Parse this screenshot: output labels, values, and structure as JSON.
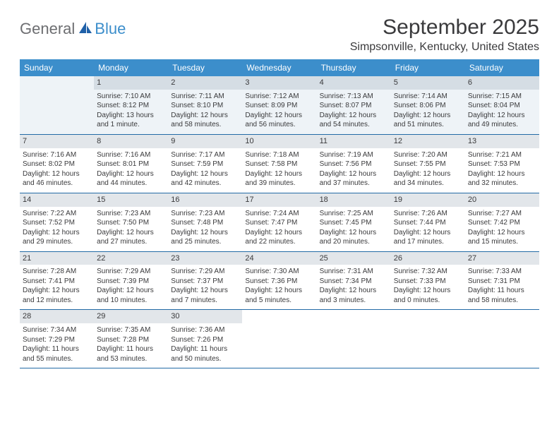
{
  "logo": {
    "general": "General",
    "blue": "Blue",
    "shape_color": "#1f60a8"
  },
  "header": {
    "title": "September 2025",
    "location": "Simpsonville, Kentucky, United States"
  },
  "theme": {
    "header_bg": "#3c8ecb",
    "header_text": "#ffffff",
    "row_border": "#236ba6",
    "daynum_bg": "#e2e6ea",
    "alt_row_bg": "#eef3f7",
    "text_color": "#3a3a3c",
    "title_fontsize": 30,
    "location_fontsize": 16,
    "dayheader_fontsize": 12,
    "cell_fontsize": 10
  },
  "day_headers": [
    "Sunday",
    "Monday",
    "Tuesday",
    "Wednesday",
    "Thursday",
    "Friday",
    "Saturday"
  ],
  "weeks": [
    [
      null,
      {
        "n": "1",
        "sr": "Sunrise: 7:10 AM",
        "ss": "Sunset: 8:12 PM",
        "dl1": "Daylight: 13 hours",
        "dl2": "and 1 minute."
      },
      {
        "n": "2",
        "sr": "Sunrise: 7:11 AM",
        "ss": "Sunset: 8:10 PM",
        "dl1": "Daylight: 12 hours",
        "dl2": "and 58 minutes."
      },
      {
        "n": "3",
        "sr": "Sunrise: 7:12 AM",
        "ss": "Sunset: 8:09 PM",
        "dl1": "Daylight: 12 hours",
        "dl2": "and 56 minutes."
      },
      {
        "n": "4",
        "sr": "Sunrise: 7:13 AM",
        "ss": "Sunset: 8:07 PM",
        "dl1": "Daylight: 12 hours",
        "dl2": "and 54 minutes."
      },
      {
        "n": "5",
        "sr": "Sunrise: 7:14 AM",
        "ss": "Sunset: 8:06 PM",
        "dl1": "Daylight: 12 hours",
        "dl2": "and 51 minutes."
      },
      {
        "n": "6",
        "sr": "Sunrise: 7:15 AM",
        "ss": "Sunset: 8:04 PM",
        "dl1": "Daylight: 12 hours",
        "dl2": "and 49 minutes."
      }
    ],
    [
      {
        "n": "7",
        "sr": "Sunrise: 7:16 AM",
        "ss": "Sunset: 8:02 PM",
        "dl1": "Daylight: 12 hours",
        "dl2": "and 46 minutes."
      },
      {
        "n": "8",
        "sr": "Sunrise: 7:16 AM",
        "ss": "Sunset: 8:01 PM",
        "dl1": "Daylight: 12 hours",
        "dl2": "and 44 minutes."
      },
      {
        "n": "9",
        "sr": "Sunrise: 7:17 AM",
        "ss": "Sunset: 7:59 PM",
        "dl1": "Daylight: 12 hours",
        "dl2": "and 42 minutes."
      },
      {
        "n": "10",
        "sr": "Sunrise: 7:18 AM",
        "ss": "Sunset: 7:58 PM",
        "dl1": "Daylight: 12 hours",
        "dl2": "and 39 minutes."
      },
      {
        "n": "11",
        "sr": "Sunrise: 7:19 AM",
        "ss": "Sunset: 7:56 PM",
        "dl1": "Daylight: 12 hours",
        "dl2": "and 37 minutes."
      },
      {
        "n": "12",
        "sr": "Sunrise: 7:20 AM",
        "ss": "Sunset: 7:55 PM",
        "dl1": "Daylight: 12 hours",
        "dl2": "and 34 minutes."
      },
      {
        "n": "13",
        "sr": "Sunrise: 7:21 AM",
        "ss": "Sunset: 7:53 PM",
        "dl1": "Daylight: 12 hours",
        "dl2": "and 32 minutes."
      }
    ],
    [
      {
        "n": "14",
        "sr": "Sunrise: 7:22 AM",
        "ss": "Sunset: 7:52 PM",
        "dl1": "Daylight: 12 hours",
        "dl2": "and 29 minutes."
      },
      {
        "n": "15",
        "sr": "Sunrise: 7:23 AM",
        "ss": "Sunset: 7:50 PM",
        "dl1": "Daylight: 12 hours",
        "dl2": "and 27 minutes."
      },
      {
        "n": "16",
        "sr": "Sunrise: 7:23 AM",
        "ss": "Sunset: 7:48 PM",
        "dl1": "Daylight: 12 hours",
        "dl2": "and 25 minutes."
      },
      {
        "n": "17",
        "sr": "Sunrise: 7:24 AM",
        "ss": "Sunset: 7:47 PM",
        "dl1": "Daylight: 12 hours",
        "dl2": "and 22 minutes."
      },
      {
        "n": "18",
        "sr": "Sunrise: 7:25 AM",
        "ss": "Sunset: 7:45 PM",
        "dl1": "Daylight: 12 hours",
        "dl2": "and 20 minutes."
      },
      {
        "n": "19",
        "sr": "Sunrise: 7:26 AM",
        "ss": "Sunset: 7:44 PM",
        "dl1": "Daylight: 12 hours",
        "dl2": "and 17 minutes."
      },
      {
        "n": "20",
        "sr": "Sunrise: 7:27 AM",
        "ss": "Sunset: 7:42 PM",
        "dl1": "Daylight: 12 hours",
        "dl2": "and 15 minutes."
      }
    ],
    [
      {
        "n": "21",
        "sr": "Sunrise: 7:28 AM",
        "ss": "Sunset: 7:41 PM",
        "dl1": "Daylight: 12 hours",
        "dl2": "and 12 minutes."
      },
      {
        "n": "22",
        "sr": "Sunrise: 7:29 AM",
        "ss": "Sunset: 7:39 PM",
        "dl1": "Daylight: 12 hours",
        "dl2": "and 10 minutes."
      },
      {
        "n": "23",
        "sr": "Sunrise: 7:29 AM",
        "ss": "Sunset: 7:37 PM",
        "dl1": "Daylight: 12 hours",
        "dl2": "and 7 minutes."
      },
      {
        "n": "24",
        "sr": "Sunrise: 7:30 AM",
        "ss": "Sunset: 7:36 PM",
        "dl1": "Daylight: 12 hours",
        "dl2": "and 5 minutes."
      },
      {
        "n": "25",
        "sr": "Sunrise: 7:31 AM",
        "ss": "Sunset: 7:34 PM",
        "dl1": "Daylight: 12 hours",
        "dl2": "and 3 minutes."
      },
      {
        "n": "26",
        "sr": "Sunrise: 7:32 AM",
        "ss": "Sunset: 7:33 PM",
        "dl1": "Daylight: 12 hours",
        "dl2": "and 0 minutes."
      },
      {
        "n": "27",
        "sr": "Sunrise: 7:33 AM",
        "ss": "Sunset: 7:31 PM",
        "dl1": "Daylight: 11 hours",
        "dl2": "and 58 minutes."
      }
    ],
    [
      {
        "n": "28",
        "sr": "Sunrise: 7:34 AM",
        "ss": "Sunset: 7:29 PM",
        "dl1": "Daylight: 11 hours",
        "dl2": "and 55 minutes."
      },
      {
        "n": "29",
        "sr": "Sunrise: 7:35 AM",
        "ss": "Sunset: 7:28 PM",
        "dl1": "Daylight: 11 hours",
        "dl2": "and 53 minutes."
      },
      {
        "n": "30",
        "sr": "Sunrise: 7:36 AM",
        "ss": "Sunset: 7:26 PM",
        "dl1": "Daylight: 11 hours",
        "dl2": "and 50 minutes."
      },
      null,
      null,
      null,
      null
    ]
  ]
}
